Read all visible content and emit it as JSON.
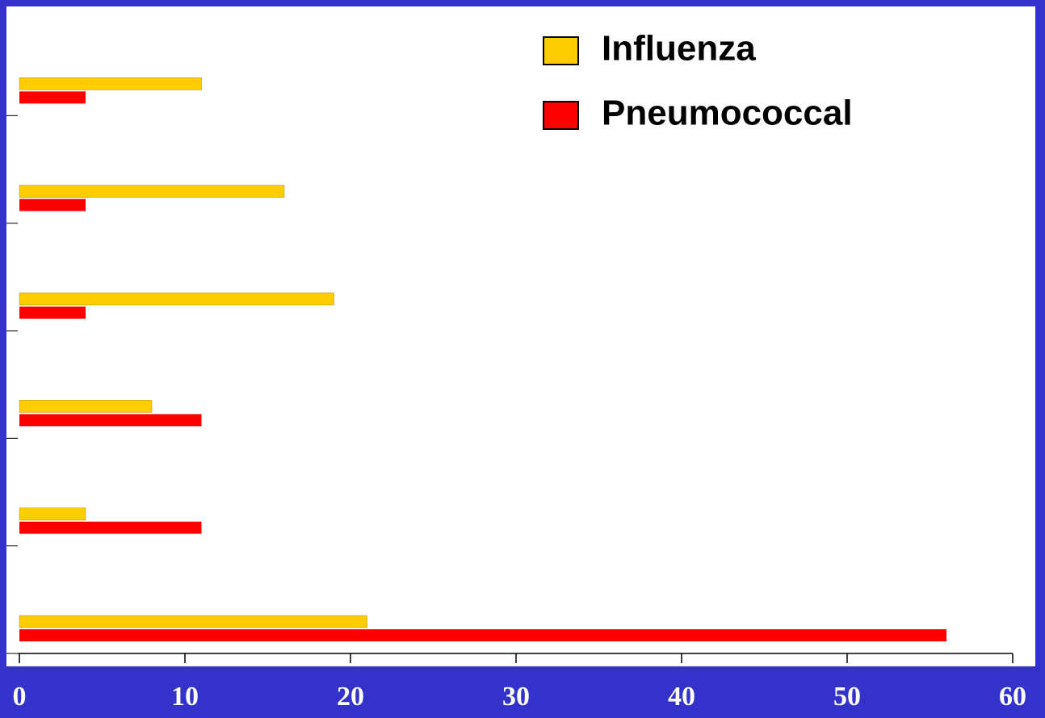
{
  "chart_data": {
    "type": "bar",
    "orientation": "horizontal",
    "categories": [
      null,
      null,
      null,
      null,
      null,
      null
    ],
    "series": [
      {
        "name": "Influenza",
        "color": "#ffcc00",
        "values": [
          11,
          16,
          19,
          8,
          4,
          21
        ]
      },
      {
        "name": "Pneumococcal",
        "color": "#ff0000",
        "values": [
          4,
          4,
          4,
          11,
          11,
          56
        ]
      }
    ],
    "xlim": [
      0,
      60
    ],
    "xticks": [
      0,
      10,
      20,
      30,
      40,
      50,
      60
    ],
    "legend": "upper right"
  }
}
